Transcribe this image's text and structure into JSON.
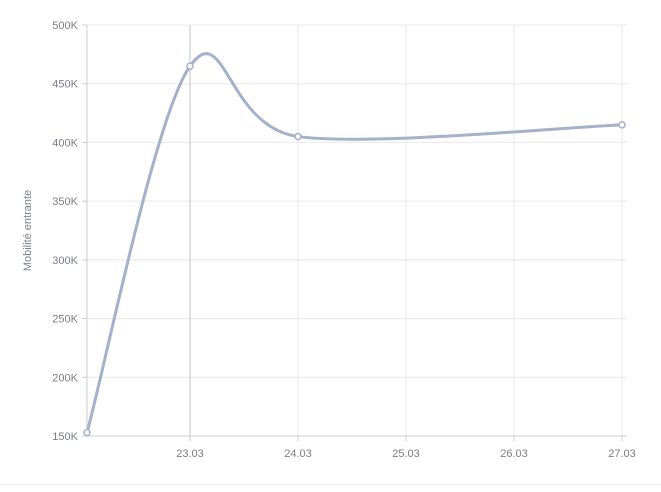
{
  "chart_data": {
    "type": "line",
    "title": "",
    "xlabel": "",
    "ylabel": "Mobilité entrante",
    "x_tick_labels": [
      "23.03",
      "24.03",
      "25.03",
      "26.03",
      "27.03"
    ],
    "y_tick_labels": [
      "150K",
      "200K",
      "250K",
      "300K",
      "350K",
      "400K",
      "450K",
      "500K"
    ],
    "ylim": [
      150000,
      500000
    ],
    "grid": true,
    "series": [
      {
        "points": [
          {
            "x": "22.03",
            "y": 153000
          },
          {
            "x": "23.03",
            "y": 465000
          },
          {
            "x": "24.03",
            "y": 405000
          },
          {
            "x": "27.03",
            "y": 415000
          }
        ]
      }
    ],
    "colors": {
      "line": "#a3b1c9",
      "grid": "#e6e8ec",
      "axis": "#c9ccd1",
      "hover_line": "#bfc3c8"
    }
  }
}
